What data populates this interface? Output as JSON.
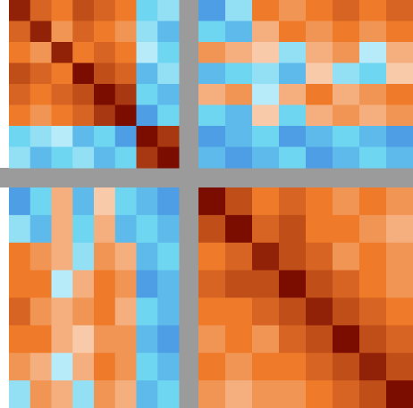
{
  "chart_data": [
    {
      "type": "heatmap",
      "colormap": [
        [
          -1,
          "#0a2fc8"
        ],
        [
          -0.4,
          "#6fd6f2"
        ],
        [
          0,
          "#ffffff"
        ],
        [
          0.5,
          "#ee7a2a"
        ],
        [
          1,
          "#7a0c00"
        ]
      ],
      "values": [
        [
          0.9,
          0.6,
          0.5,
          0.7,
          0.6,
          0.5,
          -0.4,
          -0.3
        ],
        [
          0.6,
          0.9,
          0.4,
          0.6,
          0.5,
          0.4,
          -0.3,
          -0.5
        ],
        [
          0.5,
          0.4,
          0.9,
          0.5,
          0.6,
          0.5,
          -0.2,
          -0.4
        ],
        [
          0.7,
          0.6,
          0.5,
          1,
          0.7,
          0.6,
          -0.5,
          -0.3
        ],
        [
          0.6,
          0.5,
          0.6,
          0.7,
          1,
          0.8,
          -0.4,
          -0.5
        ],
        [
          0.5,
          0.4,
          0.5,
          0.6,
          0.8,
          1,
          -0.6,
          -0.4
        ],
        [
          -0.4,
          -0.3,
          -0.2,
          -0.5,
          -0.4,
          -0.6,
          1,
          0.8
        ],
        [
          -0.3,
          -0.5,
          -0.4,
          -0.3,
          -0.5,
          -0.4,
          0.8,
          1
        ]
      ]
    },
    {
      "type": "heatmap",
      "colormap": [
        [
          -1,
          "#0a2fc8"
        ],
        [
          -0.4,
          "#6fd6f2"
        ],
        [
          0,
          "#ffffff"
        ],
        [
          0.5,
          "#ee7a2a"
        ],
        [
          1,
          "#7a0c00"
        ]
      ],
      "values": [
        [
          -0.6,
          -0.3,
          0.5,
          0.4,
          0.5,
          0.6,
          0.5,
          0.6
        ],
        [
          -0.4,
          -0.5,
          0.3,
          0.5,
          0.4,
          0.5,
          0.4,
          0.5
        ],
        [
          0.4,
          0.3,
          0.2,
          -0.3,
          0.3,
          0.4,
          -0.2,
          0.3
        ],
        [
          -0.5,
          -0.4,
          -0.3,
          -0.5,
          0.2,
          -0.3,
          -0.4,
          0.2
        ],
        [
          0.3,
          0.4,
          -0.2,
          0.3,
          0.5,
          0.3,
          0.4,
          0.5
        ],
        [
          -0.4,
          -0.5,
          0.2,
          -0.4,
          0.3,
          0.4,
          0.3,
          0.4
        ],
        [
          -0.6,
          -0.5,
          -0.4,
          -0.6,
          -0.5,
          -0.4,
          -0.5,
          -0.6
        ],
        [
          -0.5,
          -0.6,
          -0.5,
          -0.4,
          -0.6,
          -0.5,
          -0.4,
          -0.5
        ]
      ]
    },
    {
      "type": "heatmap",
      "colormap": [
        [
          -1,
          "#0a2fc8"
        ],
        [
          -0.4,
          "#6fd6f2"
        ],
        [
          0,
          "#ffffff"
        ],
        [
          0.5,
          "#ee7a2a"
        ],
        [
          1,
          "#7a0c00"
        ]
      ],
      "values": [
        [
          -0.6,
          -0.4,
          0.3,
          -0.5,
          0.2,
          -0.4,
          -0.5,
          -0.6
        ],
        [
          -0.3,
          -0.5,
          0.3,
          -0.4,
          0.3,
          -0.5,
          -0.4,
          -0.5
        ],
        [
          0.5,
          0.4,
          0.3,
          -0.3,
          0.4,
          0.3,
          -0.5,
          -0.4
        ],
        [
          0.5,
          0.5,
          -0.2,
          0.3,
          0.5,
          0.4,
          -0.6,
          -0.5
        ],
        [
          0.6,
          0.4,
          0.3,
          0.4,
          0.5,
          0.3,
          -0.4,
          -0.5
        ],
        [
          0.5,
          0.5,
          0.3,
          0.2,
          0.4,
          0.4,
          -0.5,
          -0.6
        ],
        [
          0.4,
          0.3,
          -0.2,
          0.3,
          0.5,
          0.4,
          -0.4,
          -0.5
        ],
        [
          -0.3,
          0.4,
          0.3,
          -0.3,
          0.4,
          0.3,
          -0.5,
          -0.4
        ]
      ]
    },
    {
      "type": "heatmap",
      "colormap": [
        [
          -1,
          "#0a2fc8"
        ],
        [
          -0.4,
          "#6fd6f2"
        ],
        [
          0,
          "#ffffff"
        ],
        [
          0.5,
          "#ee7a2a"
        ],
        [
          1,
          "#7a0c00"
        ]
      ],
      "values": [
        [
          1,
          0.7,
          0.5,
          0.6,
          0.5,
          0.4,
          0.5,
          0.4
        ],
        [
          0.7,
          1,
          0.6,
          0.7,
          0.5,
          0.5,
          0.4,
          0.3
        ],
        [
          0.5,
          0.6,
          0.9,
          0.7,
          0.6,
          0.4,
          0.5,
          0.4
        ],
        [
          0.6,
          0.7,
          0.7,
          1,
          0.7,
          0.6,
          0.5,
          0.4
        ],
        [
          0.5,
          0.5,
          0.6,
          0.7,
          0.9,
          0.7,
          0.6,
          0.5
        ],
        [
          0.4,
          0.5,
          0.4,
          0.6,
          0.7,
          1,
          0.7,
          0.6
        ],
        [
          0.5,
          0.4,
          0.5,
          0.5,
          0.6,
          0.7,
          0.9,
          0.7
        ],
        [
          0.4,
          0.3,
          0.4,
          0.4,
          0.5,
          0.6,
          0.7,
          1
        ]
      ]
    }
  ]
}
